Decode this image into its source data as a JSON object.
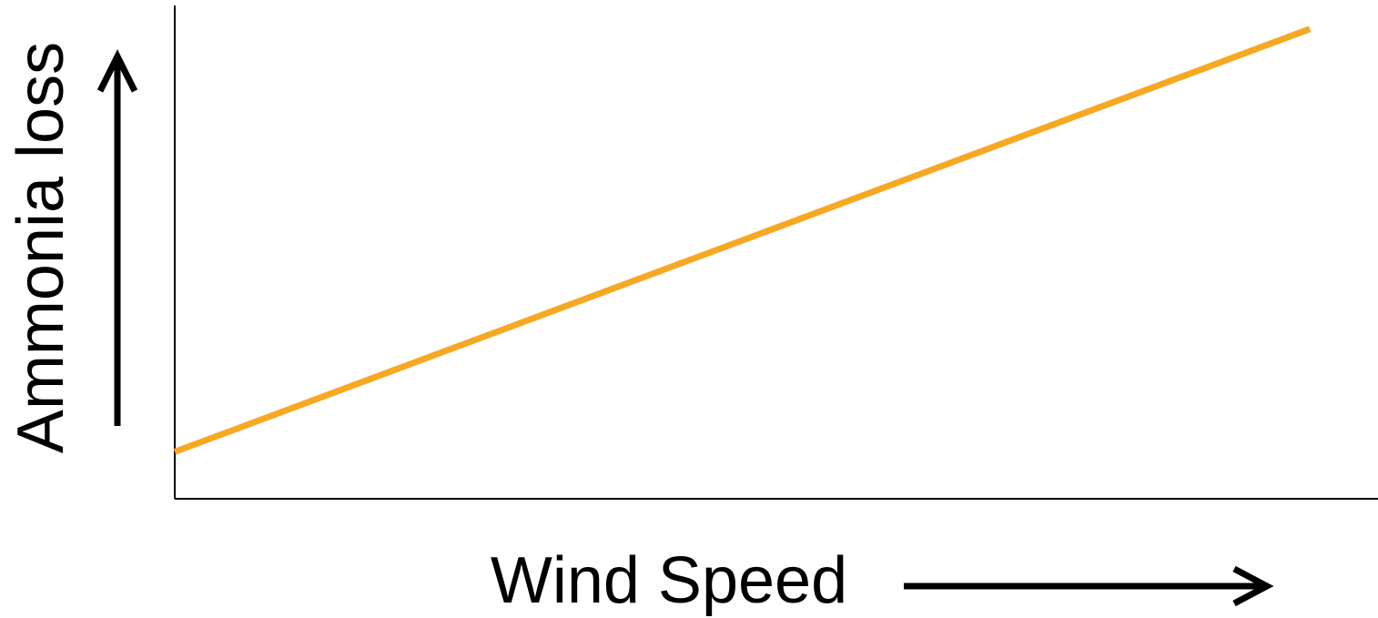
{
  "chart_data": {
    "type": "line",
    "title": "",
    "xlabel": "Wind Speed",
    "ylabel": "Ammonia loss",
    "x": [
      0,
      1
    ],
    "series": [
      {
        "values": [
          0.1,
          1.0
        ],
        "color": "#F7A823"
      }
    ],
    "xlim": [
      0,
      1.06
    ],
    "ylim": [
      0,
      1.05
    ],
    "grid": false,
    "axis_color": "#000000",
    "axis_arrows": [
      "x-right",
      "y-up"
    ]
  }
}
